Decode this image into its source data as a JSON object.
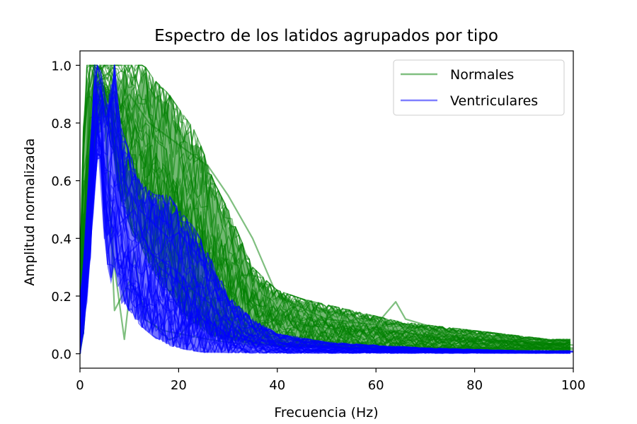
{
  "chart_data": {
    "type": "line",
    "title": "Espectro de los latidos agrupados por tipo",
    "xlabel": "Frecuencia (Hz)",
    "ylabel": "Amplitud normalizada",
    "xlim": [
      0,
      100
    ],
    "ylim": [
      -0.05,
      1.05
    ],
    "xticks": [
      0,
      20,
      40,
      60,
      80,
      100
    ],
    "yticks": [
      0.0,
      0.2,
      0.4,
      0.6,
      0.8,
      1.0
    ],
    "xtick_labels": [
      "0",
      "20",
      "40",
      "60",
      "80",
      "100"
    ],
    "ytick_labels": [
      "0.0",
      "0.2",
      "0.4",
      "0.6",
      "0.8",
      "1.0"
    ],
    "legend_position": "top-right",
    "grid": false,
    "series": [
      {
        "name": "Normales",
        "color": "#008000",
        "alpha": 0.5,
        "envelope": {
          "x": [
            0,
            1,
            2,
            3,
            5,
            8,
            10,
            13,
            15,
            18,
            20,
            23,
            25,
            27,
            30,
            33,
            35,
            38,
            40,
            45,
            50,
            55,
            60,
            65,
            70,
            75,
            80,
            85,
            90,
            95,
            100
          ],
          "upper": [
            0.3,
            1.0,
            1.0,
            1.0,
            1.0,
            1.0,
            1.0,
            1.0,
            0.95,
            0.9,
            0.85,
            0.78,
            0.7,
            0.6,
            0.5,
            0.38,
            0.3,
            0.25,
            0.22,
            0.19,
            0.17,
            0.15,
            0.13,
            0.11,
            0.1,
            0.09,
            0.08,
            0.07,
            0.06,
            0.05,
            0.05
          ],
          "lower": [
            0.0,
            0.1,
            0.4,
            0.75,
            0.85,
            0.55,
            0.45,
            0.35,
            0.28,
            0.22,
            0.16,
            0.11,
            0.08,
            0.06,
            0.045,
            0.04,
            0.035,
            0.03,
            0.025,
            0.022,
            0.02,
            0.018,
            0.017,
            0.016,
            0.015,
            0.015,
            0.014,
            0.014,
            0.013,
            0.013,
            0.012
          ]
        },
        "sample_lines": [
          {
            "x": [
              0,
              1,
              2,
              3,
              5,
              7,
              9,
              11,
              13,
              15,
              17,
              20,
              23,
              26,
              30,
              35,
              40,
              50,
              60,
              70,
              80,
              90,
              100
            ],
            "y": [
              0.0,
              0.5,
              1.0,
              0.95,
              0.8,
              0.3,
              0.05,
              0.35,
              0.12,
              0.1,
              0.08,
              0.07,
              0.06,
              0.05,
              0.04,
              0.03,
              0.03,
              0.025,
              0.02,
              0.02,
              0.02,
              0.018,
              0.015
            ]
          },
          {
            "x": [
              0,
              1,
              3,
              5,
              7,
              10,
              12,
              15,
              18,
              20,
              22,
              25,
              28,
              30,
              33,
              36,
              40,
              45,
              50,
              60,
              70,
              80,
              90,
              100
            ],
            "y": [
              0.0,
              0.6,
              1.0,
              0.9,
              0.15,
              0.25,
              0.2,
              0.1,
              0.05,
              0.06,
              0.1,
              0.12,
              0.08,
              0.06,
              0.05,
              0.04,
              0.03,
              0.03,
              0.025,
              0.02,
              0.02,
              0.02,
              0.02,
              0.02
            ]
          },
          {
            "x": [
              0,
              2,
              4,
              6,
              8,
              10,
              14,
              18,
              22,
              26,
              30,
              35,
              40,
              50,
              60,
              64,
              66,
              70,
              75,
              80,
              90,
              100
            ],
            "y": [
              0.0,
              0.9,
              1.0,
              0.9,
              0.85,
              0.9,
              0.8,
              0.75,
              0.7,
              0.65,
              0.55,
              0.4,
              0.2,
              0.12,
              0.1,
              0.18,
              0.12,
              0.1,
              0.06,
              0.05,
              0.04,
              0.03
            ]
          }
        ]
      },
      {
        "name": "Ventriculares",
        "color": "#0000ff",
        "alpha": 0.5,
        "envelope": {
          "x": [
            0,
            1,
            2,
            3,
            4,
            5,
            6,
            7,
            8,
            10,
            12,
            15,
            18,
            20,
            23,
            25,
            28,
            30,
            35,
            40,
            50,
            60,
            70,
            80,
            90,
            100
          ],
          "upper": [
            0.2,
            0.4,
            0.7,
            1.0,
            1.0,
            0.9,
            0.95,
            1.0,
            0.8,
            0.7,
            0.6,
            0.55,
            0.55,
            0.5,
            0.44,
            0.38,
            0.28,
            0.2,
            0.12,
            0.07,
            0.04,
            0.03,
            0.02,
            0.015,
            0.01,
            0.01
          ],
          "lower": [
            0.0,
            0.1,
            0.3,
            0.6,
            0.75,
            0.4,
            0.25,
            0.3,
            0.2,
            0.15,
            0.1,
            0.06,
            0.03,
            0.02,
            0.01,
            0.005,
            0.005,
            0.004,
            0.003,
            0.002,
            0.002,
            0.002,
            0.002,
            0.002,
            0.002,
            0.002
          ]
        },
        "sample_lines": [
          {
            "x": [
              0,
              2,
              3,
              4,
              6,
              7,
              9,
              12,
              15,
              18,
              20,
              22,
              25,
              28,
              30,
              33,
              36,
              40,
              45,
              50,
              60,
              70,
              80,
              90,
              100
            ],
            "y": [
              0.0,
              0.5,
              1.0,
              0.7,
              0.55,
              1.0,
              0.6,
              0.5,
              0.45,
              0.4,
              0.42,
              0.38,
              0.32,
              0.2,
              0.12,
              0.08,
              0.05,
              0.04,
              0.03,
              0.02,
              0.015,
              0.01,
              0.01,
              0.008,
              0.006
            ]
          },
          {
            "x": [
              0,
              1,
              3,
              4,
              5,
              7,
              10,
              13,
              16,
              20,
              24,
              27,
              30,
              35,
              40,
              50,
              60,
              80,
              100
            ],
            "y": [
              0.0,
              0.3,
              0.95,
              0.65,
              0.4,
              0.8,
              0.35,
              0.4,
              0.3,
              0.25,
              0.15,
              0.1,
              0.07,
              0.04,
              0.025,
              0.02,
              0.015,
              0.01,
              0.008
            ]
          },
          {
            "x": [
              0,
              2,
              3,
              5,
              6,
              8,
              11,
              14,
              17,
              20,
              23,
              26,
              29,
              33,
              38,
              45,
              55,
              70,
              85,
              100
            ],
            "y": [
              0.0,
              0.6,
              0.9,
              0.5,
              0.9,
              0.45,
              0.5,
              0.35,
              0.32,
              0.28,
              0.22,
              0.18,
              0.12,
              0.06,
              0.04,
              0.03,
              0.02,
              0.01,
              0.01,
              0.008
            ]
          }
        ]
      }
    ]
  }
}
